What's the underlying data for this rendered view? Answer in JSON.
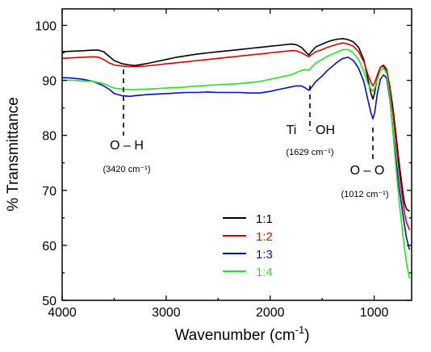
{
  "chart_data": {
    "type": "line",
    "xlabel": "Wavenumber (cm",
    "xlabel_sup": "-1",
    "xlabel_close": ")",
    "ylabel": "% Transmittance",
    "xlim": [
      4000,
      640
    ],
    "ylim": [
      50,
      103
    ],
    "x_ticks": [
      4000,
      3000,
      2000,
      1000
    ],
    "y_ticks": [
      50,
      60,
      70,
      80,
      90,
      100
    ],
    "x_tick_labels": [
      "4000",
      "3000",
      "2000",
      "1000"
    ],
    "y_tick_labels": [
      "50",
      "60",
      "70",
      "80",
      "90",
      "100"
    ],
    "grid": false,
    "legend_position": "center-bottom",
    "annotations": [
      {
        "label": "O – H",
        "sub": "(3420 cm⁻¹)",
        "x": 3420,
        "y": 93
      },
      {
        "label_a": "Ti",
        "label_b": "OH",
        "sub": "(1629 cm⁻¹)",
        "x": 1629,
        "y": 94
      },
      {
        "label": "O – O",
        "sub": "(1012 cm⁻¹)",
        "x": 1012,
        "y": 84
      }
    ],
    "series": [
      {
        "name": "1:1",
        "color": "#000000",
        "points": [
          [
            4000,
            95.2
          ],
          [
            3900,
            95.3
          ],
          [
            3800,
            95.4
          ],
          [
            3700,
            95.5
          ],
          [
            3650,
            95.5
          ],
          [
            3600,
            95.2
          ],
          [
            3550,
            94.4
          ],
          [
            3500,
            93.6
          ],
          [
            3420,
            93.0
          ],
          [
            3350,
            92.8
          ],
          [
            3300,
            92.7
          ],
          [
            3200,
            93.0
          ],
          [
            3100,
            93.4
          ],
          [
            3000,
            93.8
          ],
          [
            2900,
            94.2
          ],
          [
            2800,
            94.5
          ],
          [
            2700,
            94.8
          ],
          [
            2600,
            95.0
          ],
          [
            2500,
            95.2
          ],
          [
            2400,
            95.4
          ],
          [
            2300,
            95.6
          ],
          [
            2200,
            95.8
          ],
          [
            2100,
            96.0
          ],
          [
            2000,
            96.2
          ],
          [
            1900,
            96.4
          ],
          [
            1800,
            96.6
          ],
          [
            1750,
            96.5
          ],
          [
            1700,
            96.0
          ],
          [
            1660,
            95.2
          ],
          [
            1629,
            94.6
          ],
          [
            1600,
            95.3
          ],
          [
            1560,
            96.1
          ],
          [
            1500,
            96.6
          ],
          [
            1450,
            97.0
          ],
          [
            1400,
            97.3
          ],
          [
            1350,
            97.5
          ],
          [
            1300,
            97.6
          ],
          [
            1250,
            97.4
          ],
          [
            1200,
            97.0
          ],
          [
            1150,
            96.0
          ],
          [
            1100,
            93.8
          ],
          [
            1060,
            90.2
          ],
          [
            1030,
            87.6
          ],
          [
            1012,
            86.6
          ],
          [
            995,
            87.8
          ],
          [
            970,
            90.6
          ],
          [
            940,
            92.4
          ],
          [
            910,
            92.6
          ],
          [
            880,
            91.8
          ],
          [
            850,
            89.0
          ],
          [
            820,
            85.0
          ],
          [
            790,
            80.0
          ],
          [
            760,
            75.0
          ],
          [
            730,
            70.5
          ],
          [
            710,
            67.8
          ],
          [
            690,
            66.6
          ],
          [
            660,
            66.2
          ]
        ]
      },
      {
        "name": "1:2",
        "color": "#e00000",
        "points": [
          [
            4000,
            94.0
          ],
          [
            3900,
            94.1
          ],
          [
            3800,
            94.2
          ],
          [
            3700,
            94.3
          ],
          [
            3650,
            94.2
          ],
          [
            3600,
            93.8
          ],
          [
            3550,
            93.2
          ],
          [
            3500,
            92.8
          ],
          [
            3420,
            92.6
          ],
          [
            3350,
            92.5
          ],
          [
            3300,
            92.5
          ],
          [
            3200,
            92.6
          ],
          [
            3100,
            92.8
          ],
          [
            3000,
            93.0
          ],
          [
            2900,
            93.2
          ],
          [
            2800,
            93.4
          ],
          [
            2700,
            93.6
          ],
          [
            2600,
            93.8
          ],
          [
            2500,
            94.0
          ],
          [
            2400,
            94.2
          ],
          [
            2300,
            94.4
          ],
          [
            2200,
            94.6
          ],
          [
            2100,
            94.8
          ],
          [
            2000,
            95.0
          ],
          [
            1900,
            95.2
          ],
          [
            1800,
            95.4
          ],
          [
            1750,
            95.4
          ],
          [
            1700,
            95.0
          ],
          [
            1660,
            94.6
          ],
          [
            1629,
            94.3
          ],
          [
            1600,
            94.7
          ],
          [
            1560,
            95.2
          ],
          [
            1500,
            95.6
          ],
          [
            1450,
            96.0
          ],
          [
            1400,
            96.3
          ],
          [
            1350,
            96.6
          ],
          [
            1300,
            96.8
          ],
          [
            1250,
            96.6
          ],
          [
            1200,
            96.2
          ],
          [
            1150,
            95.2
          ],
          [
            1100,
            93.4
          ],
          [
            1060,
            91.0
          ],
          [
            1030,
            89.6
          ],
          [
            1012,
            89.0
          ],
          [
            995,
            89.6
          ],
          [
            970,
            91.0
          ],
          [
            940,
            92.4
          ],
          [
            910,
            92.8
          ],
          [
            880,
            92.0
          ],
          [
            850,
            88.6
          ],
          [
            820,
            84.0
          ],
          [
            790,
            78.6
          ],
          [
            760,
            73.4
          ],
          [
            730,
            68.8
          ],
          [
            710,
            66.0
          ],
          [
            690,
            64.2
          ],
          [
            660,
            62.8
          ]
        ]
      },
      {
        "name": "1:3",
        "color": "#0010c8",
        "points": [
          [
            4000,
            90.5
          ],
          [
            3900,
            90.4
          ],
          [
            3800,
            90.2
          ],
          [
            3700,
            89.8
          ],
          [
            3650,
            89.4
          ],
          [
            3600,
            89.0
          ],
          [
            3550,
            88.4
          ],
          [
            3500,
            87.6
          ],
          [
            3420,
            87.2
          ],
          [
            3350,
            87.1
          ],
          [
            3300,
            87.2
          ],
          [
            3200,
            87.4
          ],
          [
            3100,
            87.5
          ],
          [
            3000,
            87.6
          ],
          [
            2900,
            87.7
          ],
          [
            2800,
            87.8
          ],
          [
            2700,
            87.8
          ],
          [
            2600,
            87.9
          ],
          [
            2500,
            87.8
          ],
          [
            2400,
            87.8
          ],
          [
            2300,
            87.8
          ],
          [
            2200,
            87.7
          ],
          [
            2100,
            87.7
          ],
          [
            2000,
            88.0
          ],
          [
            1900,
            88.4
          ],
          [
            1800,
            88.8
          ],
          [
            1750,
            89.0
          ],
          [
            1700,
            89.0
          ],
          [
            1660,
            88.6
          ],
          [
            1629,
            88.2
          ],
          [
            1600,
            88.8
          ],
          [
            1560,
            89.8
          ],
          [
            1500,
            90.8
          ],
          [
            1450,
            91.8
          ],
          [
            1400,
            92.6
          ],
          [
            1350,
            93.4
          ],
          [
            1300,
            94.0
          ],
          [
            1250,
            94.2
          ],
          [
            1200,
            93.6
          ],
          [
            1150,
            92.2
          ],
          [
            1100,
            89.8
          ],
          [
            1060,
            86.4
          ],
          [
            1030,
            84.0
          ],
          [
            1012,
            83.0
          ],
          [
            995,
            84.2
          ],
          [
            970,
            87.6
          ],
          [
            940,
            90.2
          ],
          [
            910,
            91.0
          ],
          [
            880,
            90.4
          ],
          [
            850,
            86.6
          ],
          [
            820,
            81.0
          ],
          [
            790,
            75.6
          ],
          [
            760,
            70.6
          ],
          [
            730,
            66.4
          ],
          [
            710,
            63.8
          ],
          [
            690,
            61.4
          ],
          [
            660,
            59.2
          ]
        ]
      },
      {
        "name": "1:4",
        "color": "#1ee81e",
        "points": [
          [
            4000,
            90.0
          ],
          [
            3900,
            90.0
          ],
          [
            3800,
            89.9
          ],
          [
            3700,
            89.8
          ],
          [
            3650,
            89.6
          ],
          [
            3600,
            89.4
          ],
          [
            3550,
            89.0
          ],
          [
            3500,
            88.6
          ],
          [
            3420,
            88.4
          ],
          [
            3350,
            88.3
          ],
          [
            3300,
            88.3
          ],
          [
            3200,
            88.4
          ],
          [
            3100,
            88.5
          ],
          [
            3000,
            88.6
          ],
          [
            2900,
            88.7
          ],
          [
            2800,
            88.8
          ],
          [
            2700,
            89.0
          ],
          [
            2600,
            89.1
          ],
          [
            2500,
            89.2
          ],
          [
            2400,
            89.3
          ],
          [
            2300,
            89.4
          ],
          [
            2200,
            89.6
          ],
          [
            2100,
            89.8
          ],
          [
            2000,
            90.2
          ],
          [
            1900,
            90.6
          ],
          [
            1800,
            91.0
          ],
          [
            1750,
            91.4
          ],
          [
            1700,
            91.8
          ],
          [
            1660,
            92.0
          ],
          [
            1629,
            91.8
          ],
          [
            1600,
            92.4
          ],
          [
            1560,
            93.2
          ],
          [
            1500,
            93.8
          ],
          [
            1450,
            94.4
          ],
          [
            1400,
            94.8
          ],
          [
            1350,
            95.2
          ],
          [
            1300,
            95.6
          ],
          [
            1250,
            95.6
          ],
          [
            1200,
            95.0
          ],
          [
            1150,
            93.8
          ],
          [
            1100,
            91.6
          ],
          [
            1060,
            89.4
          ],
          [
            1030,
            88.4
          ],
          [
            1012,
            88.0
          ],
          [
            995,
            88.6
          ],
          [
            970,
            90.2
          ],
          [
            940,
            91.8
          ],
          [
            910,
            92.2
          ],
          [
            880,
            91.2
          ],
          [
            850,
            87.0
          ],
          [
            820,
            80.6
          ],
          [
            790,
            74.0
          ],
          [
            760,
            68.0
          ],
          [
            730,
            63.0
          ],
          [
            710,
            59.6
          ],
          [
            690,
            56.8
          ],
          [
            660,
            54.0
          ]
        ]
      }
    ]
  }
}
